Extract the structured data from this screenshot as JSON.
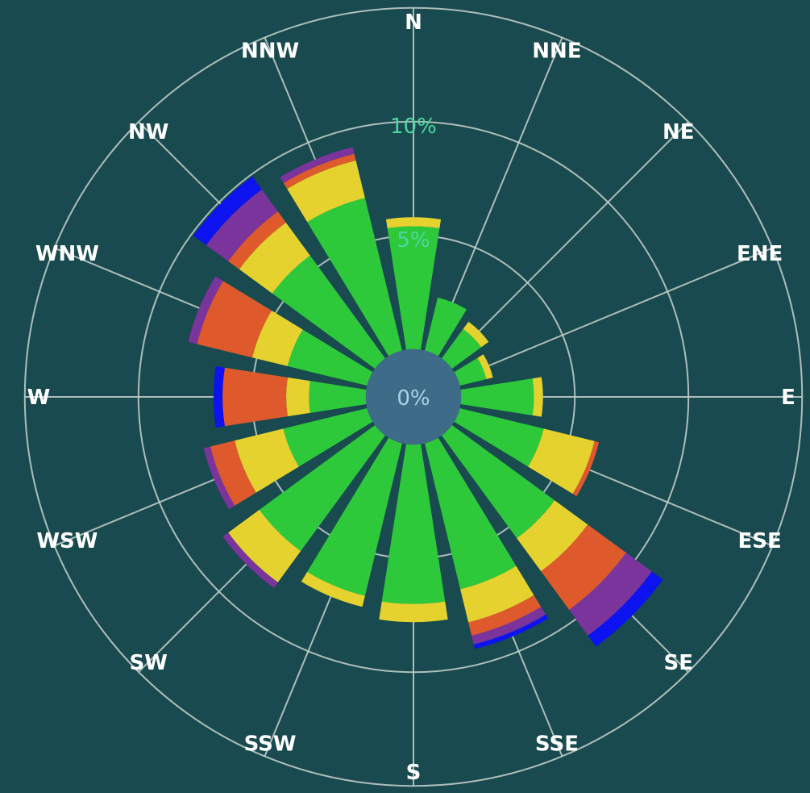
{
  "chart_data": {
    "type": "wind-rose",
    "title": "",
    "directions": [
      "N",
      "NNE",
      "NE",
      "ENE",
      "E",
      "ESE",
      "SE",
      "SSE",
      "S",
      "SSW",
      "SW",
      "WSW",
      "W",
      "WNW",
      "NW",
      "NNW"
    ],
    "ring_labels": [
      "5%",
      "10%"
    ],
    "rings_percent": [
      5,
      10,
      15
    ],
    "center_label": "0%",
    "calm_percent": 2.1,
    "bin_colors": [
      "#2ec93a",
      "#e6d22e",
      "#de5a2c",
      "#7b349c",
      "#0d12f0"
    ],
    "series": [
      {
        "direction": "N",
        "stacks": [
          5.4,
          0.4,
          0,
          0,
          0
        ]
      },
      {
        "direction": "NNE",
        "stacks": [
          2.4,
          0,
          0,
          0,
          0
        ]
      },
      {
        "direction": "NE",
        "stacks": [
          1.6,
          0.4,
          0,
          0,
          0
        ]
      },
      {
        "direction": "ENE",
        "stacks": [
          1.2,
          0.3,
          0,
          0,
          0
        ]
      },
      {
        "direction": "E",
        "stacks": [
          3.2,
          0.4,
          0,
          0,
          0
        ]
      },
      {
        "direction": "ESE",
        "stacks": [
          3.8,
          2.3,
          0.2,
          0,
          0
        ]
      },
      {
        "direction": "SE",
        "stacks": [
          5.6,
          1.8,
          2.1,
          1.4,
          0.6
        ]
      },
      {
        "direction": "SSE",
        "stacks": [
          6.6,
          1.5,
          0.6,
          0.4,
          0.2
        ]
      },
      {
        "direction": "S",
        "stacks": [
          7.0,
          0.8,
          0,
          0,
          0
        ]
      },
      {
        "direction": "SSW",
        "stacks": [
          6.9,
          0.5,
          0,
          0,
          0
        ]
      },
      {
        "direction": "SW",
        "stacks": [
          6.3,
          1.7,
          0,
          0.3,
          0
        ]
      },
      {
        "direction": "WSW",
        "stacks": [
          3.8,
          2.2,
          1.1,
          0.3,
          0
        ]
      },
      {
        "direction": "W",
        "stacks": [
          2.5,
          1.0,
          2.8,
          0,
          0.4
        ]
      },
      {
        "direction": "WNW",
        "stacks": [
          3.6,
          1.6,
          2.5,
          0.4,
          0
        ]
      },
      {
        "direction": "NW",
        "stacks": [
          5.6,
          1.8,
          0.6,
          1.2,
          0.7
        ]
      },
      {
        "direction": "NNW",
        "stacks": [
          6.9,
          1.7,
          0.3,
          0.3,
          0
        ]
      }
    ],
    "colors": {
      "background": "#184a4f",
      "grid": "#c8d2cc",
      "calm": "#3d6b88",
      "label": "#ffffff",
      "ring_label": "#4fd6a0"
    }
  }
}
